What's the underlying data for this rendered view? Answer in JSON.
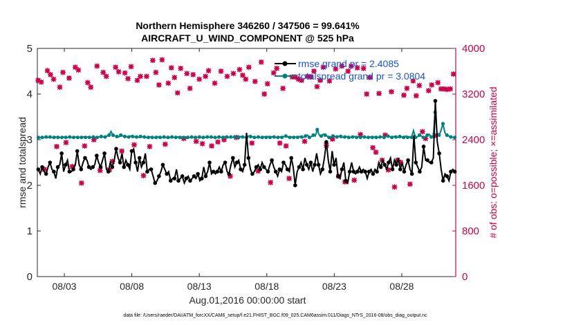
{
  "chart_data": {
    "type": "line",
    "title_line1": "Northern Hemisphere 346260 / 347506 = 99.641%",
    "title_line2": "AIRCRAFT_U_WIND_COMPONENT @ 525 hPa",
    "ylabel_left": "rmse and totalspread",
    "ylabel_right": "# of obs: o=possible; ×=assimilated",
    "xlabel": "Aug.01,2016 00:00:00 start",
    "footer": "data file: /Users/raeder/DAI/ATM_forcXX/CAM6_setup/f.e21.FHIST_BGC.f09_025.CAM6assim.011/Diags_NTrS_2016-08/obs_diag_output.nc",
    "xlim": [
      1,
      32
    ],
    "ylim_left": [
      0,
      5
    ],
    "ylim_right": [
      0,
      4000
    ],
    "x_ticks": [
      3,
      8,
      13,
      18,
      23,
      28
    ],
    "x_tick_labels": [
      "08/03",
      "08/08",
      "08/13",
      "08/18",
      "08/23",
      "08/28"
    ],
    "y_left_ticks": [
      "0",
      "1",
      "2",
      "3",
      "4",
      "5"
    ],
    "y_right_ticks": [
      "0",
      "800",
      "1600",
      "2400",
      "3200",
      "4000"
    ],
    "legend": {
      "placement": "top-right",
      "rmse_label": "rmse grand pr = 2.4085",
      "spread_label": "totalspread grand pr = 3.0804"
    },
    "series": [
      {
        "name": "rmse",
        "color": "#000000",
        "values": [
          2.35,
          2.25,
          2.4,
          2.3,
          2.25,
          2.4,
          2.5,
          2.35,
          2.3,
          2.15,
          2.4,
          2.45,
          2.7,
          2.3,
          2.45,
          2.55,
          2.3,
          2.3,
          2.35,
          2.45,
          2.75,
          2.45,
          2.35,
          2.5,
          2.6,
          2.55,
          2.4,
          2.35,
          2.4,
          2.45,
          2.65,
          2.5,
          2.4,
          2.55,
          2.7,
          2.35,
          2.3,
          2.5,
          2.4,
          2.55,
          2.8,
          2.6,
          2.5,
          2.7,
          2.4,
          2.55,
          2.45,
          2.35,
          2.75,
          2.8,
          2.5,
          2.3,
          2.6,
          2.4,
          2.5,
          2.7,
          2.3,
          2.35,
          2.35,
          2.2,
          2.05,
          2.1,
          2.2,
          2.3,
          2.45,
          2.35,
          2.25,
          2.3,
          2.1,
          2.15,
          2.15,
          2.35,
          2.1,
          2.15,
          2.2,
          2.05,
          2.15,
          2.2,
          2.1,
          2.15,
          2.2,
          2.15,
          2.25,
          2.1,
          2.15,
          2.4,
          2.2,
          2.3,
          2.5,
          2.25,
          2.3,
          2.25,
          2.3,
          2.4,
          2.3,
          2.45,
          2.5,
          2.3,
          2.25,
          2.45,
          2.6,
          2.4,
          2.5,
          2.55,
          2.35,
          2.3,
          2.45,
          3.15,
          2.6,
          2.35,
          2.25,
          2.3,
          2.4,
          2.45,
          2.35,
          2.5,
          2.4,
          2.35,
          2.3,
          2.45,
          2.55,
          2.4,
          2.3,
          2.2,
          2.35,
          2.3,
          2.5,
          2.45,
          2.35,
          2.3,
          2.6,
          2.4,
          2.0,
          2.3,
          2.4,
          2.5,
          2.35,
          2.6,
          2.45,
          2.35,
          2.5,
          2.3,
          2.45,
          2.7,
          2.45,
          2.25,
          2.35,
          2.6,
          2.95,
          2.55,
          2.3,
          2.75,
          2.45,
          2.6,
          2.2,
          2.15,
          2.35,
          2.5,
          2.1,
          2.05,
          2.3,
          2.5,
          2.3,
          2.25,
          2.3,
          2.4,
          2.3,
          2.35,
          2.3,
          2.15,
          2.3,
          2.35,
          2.25,
          2.35,
          2.3,
          2.5,
          2.4,
          2.55,
          2.45,
          2.35,
          2.5,
          2.6,
          2.35,
          2.55,
          2.45,
          2.6,
          2.35,
          2.5,
          2.3,
          2.45,
          2.55,
          2.35,
          2.25,
          3.1,
          2.5,
          2.4,
          2.3,
          2.4,
          2.85,
          2.55,
          2.55,
          2.5,
          2.5,
          2.6,
          3.85,
          2.95,
          2.7,
          2.35,
          2.1,
          2.25,
          2.2,
          2.1,
          2.3,
          2.35,
          2.3
        ]
      },
      {
        "name": "totalspread",
        "color": "#008080",
        "values": [
          3.05,
          3.05,
          3.05,
          3.05,
          3.06,
          3.05,
          3.06,
          3.05,
          3.05,
          3.06,
          3.05,
          3.05,
          3.05,
          3.06,
          3.05,
          3.05,
          3.06,
          3.05,
          3.05,
          3.06,
          3.05,
          3.05,
          3.05,
          3.06,
          3.05,
          3.06,
          3.05,
          3.05,
          3.06,
          3.05,
          3.05,
          3.06,
          3.07,
          3.06,
          3.06,
          3.08,
          3.1,
          3.18,
          3.1,
          3.08,
          3.07,
          3.06,
          3.1,
          3.08,
          3.07,
          3.06,
          3.06,
          3.08,
          3.07,
          3.06,
          3.06,
          3.05,
          3.07,
          3.06,
          3.06,
          3.05,
          3.05,
          3.06,
          3.05,
          3.05,
          3.05,
          3.06,
          3.05,
          3.05,
          3.06,
          3.05,
          3.05,
          3.05,
          3.06,
          3.05,
          3.05,
          3.06,
          3.05,
          3.05,
          3.05,
          3.06,
          3.05,
          3.05,
          3.06,
          3.05,
          3.05,
          3.05,
          3.06,
          3.05,
          3.05,
          3.05,
          3.06,
          3.05,
          3.06,
          3.05,
          3.05,
          3.05,
          3.06,
          3.05,
          3.05,
          3.07,
          3.06,
          3.05,
          3.06,
          3.05,
          3.06,
          3.05,
          3.05,
          3.07,
          3.06,
          3.05,
          3.05,
          3.08,
          3.07,
          3.06,
          3.05,
          3.05,
          3.06,
          3.05,
          3.05,
          3.06,
          3.05,
          3.07,
          3.05,
          3.06,
          3.06,
          3.05,
          3.05,
          3.06,
          3.05,
          3.07,
          3.08,
          3.06,
          3.05,
          3.06,
          3.05,
          3.06,
          3.05,
          3.07,
          3.06,
          3.05,
          3.08,
          3.1,
          3.05,
          3.07,
          3.1,
          3.08,
          3.22,
          3.1,
          3.08,
          3.12,
          3.1,
          3.08,
          3.05,
          3.06,
          3.08,
          3.07,
          3.06,
          3.08,
          3.07,
          3.05,
          3.06,
          3.07,
          3.05,
          3.05,
          3.06,
          3.07,
          3.05,
          3.06,
          3.05,
          3.07,
          3.06,
          3.05,
          3.05,
          3.06,
          3.05,
          3.06,
          3.05,
          3.05,
          3.06,
          3.06,
          3.05,
          3.07,
          3.08,
          3.06,
          3.05,
          3.07,
          3.06,
          3.05,
          3.07,
          3.06,
          3.05,
          3.08,
          3.05,
          3.06,
          3.05,
          3.2,
          3.05,
          3.06,
          3.1,
          3.08,
          3.05,
          3.06,
          3.1,
          3.12,
          3.06,
          3.05,
          3.6,
          3.15,
          3.1,
          3.2,
          3.35,
          3.15,
          3.1,
          3.08,
          3.06,
          3.05,
          3.05
        ]
      },
      {
        "name": "possible",
        "color": "#c8004b",
        "values": [
          3440,
          3430,
          3410,
          2260,
          1880,
          3580,
          3610,
          2260,
          3540,
          3480,
          3460,
          3420,
          2280,
          1760,
          3320,
          2400,
          3580,
          3660,
          2350,
          3380,
          3480,
          2270,
          1930,
          3590,
          3670,
          2310,
          3620,
          2900,
          1640,
          3530,
          2290,
          3570,
          3400,
          2320,
          3320,
          2260,
          2400,
          3640,
          3690,
          2270,
          1860,
          3620,
          3580,
          2340,
          3510,
          2450,
          1870,
          3580,
          2020,
          3760,
          3670,
          2310,
          3590,
          3640,
          2200,
          3810,
          3570,
          3580,
          3470,
          2370,
          3680,
          3390,
          2310,
          2660,
          3440,
          3640,
          3510,
          2430,
          1770,
          3550,
          3510,
          3440,
          2280,
          3860,
          3790,
          2200,
          3580,
          3430,
          3360,
          2280,
          3800,
          3850,
          2320,
          3470,
          3390,
          2350,
          3660,
          3600,
          3490,
          2340,
          3220,
          1770,
          3650,
          3730,
          2420,
          3620,
          3560,
          2320,
          3300,
          1680,
          3540,
          3660,
          2370,
          3880,
          3460,
          3550,
          2330,
          3680,
          3510,
          2400,
          3610,
          3650,
          2290,
          3440,
          3390,
          3680,
          2360,
          1970,
          3600,
          3420,
          2400,
          3860,
          3510,
          2290,
          1760,
          3680,
          3560,
          3640,
          2440,
          3560,
          3630,
          2300,
          3530,
          3580,
          3460,
          1850,
          3670,
          3480,
          2340,
          3600,
          3420,
          2440,
          1850,
          3690,
          3760,
          3360,
          3200,
          3480,
          3380,
          2260,
          1650,
          3640,
          3570,
          2410,
          3650,
          3530,
          2340,
          3780,
          3300,
          3380,
          2290,
          3440,
          1720,
          3590,
          3500,
          2490,
          3500,
          3580,
          3460,
          1840,
          3440,
          3680,
          2370,
          3790,
          3510,
          2310,
          3500,
          3510,
          3600,
          2380,
          3330,
          3540,
          3440,
          2340,
          3670,
          3500,
          2300,
          3590,
          3430,
          3700,
          2410,
          3360,
          3640,
          3400,
          1760,
          3480,
          3690,
          2260,
          1660,
          3460,
          3600,
          2350,
          3690,
          2240,
          1690,
          3470,
          3660,
          2330,
          2490,
          3600,
          3650,
          3280,
          3200,
          2090,
          3490,
          3610,
          2260,
          3210,
          2180,
          1820,
          3210,
          2300,
          2040,
          3230,
          2480,
          3240,
          1870,
          3280,
          3240,
          2410,
          1570,
          3420,
          2040,
          3560,
          2000,
          3190,
          3180,
          2500,
          3300,
          1700,
          1620,
          3270,
          3430,
          3560,
          3170,
          3250,
          3350,
          2370,
          2540,
          2160,
          2420,
          3180,
          3260,
          3270,
          3360,
          2850,
          2470,
          3240,
          3400,
          3220,
          3290,
          2540,
          3290,
          3370,
          3280,
          3390,
          3290,
          3070,
          3550,
          0
        ]
      },
      {
        "name": "assimilated",
        "color": "#c8004b",
        "values": [
          3440,
          3430,
          3410,
          2260,
          1880,
          3580,
          3610,
          2260,
          3540,
          3480,
          3460,
          3420,
          2280,
          1760,
          3320,
          2400,
          3580,
          3660,
          2350,
          3380,
          3480,
          2270,
          1930,
          3590,
          3670,
          2310,
          3620,
          2900,
          1640,
          3530,
          2290,
          3570,
          3400,
          2320,
          3320,
          2260,
          2400,
          3640,
          3690,
          2270,
          1860,
          3620,
          3580,
          2340,
          3510,
          2450,
          1870,
          3580,
          2020,
          3760,
          3670,
          2310,
          3590,
          3640,
          2200,
          3810,
          3570,
          3580,
          3470,
          2370,
          3680,
          3390,
          2310,
          2660,
          3440,
          3640,
          3510,
          2430,
          1770,
          3550,
          3510,
          3440,
          2280,
          3860,
          3790,
          2200,
          3580,
          3430,
          3360,
          2280,
          3800,
          3850,
          2320,
          3470,
          3390,
          2350,
          3660,
          3600,
          3490,
          2340,
          3220,
          1770,
          3650,
          3730,
          2420,
          3620,
          3560,
          2320,
          3300,
          1680,
          3540,
          3660,
          2370,
          3880,
          3460,
          3550,
          2330,
          3680,
          3510,
          2400,
          3610,
          3650,
          2290,
          3440,
          3390,
          3680,
          2360,
          1970,
          3600,
          3420,
          2400,
          3860,
          3510,
          2290,
          1760,
          3680,
          3560,
          3640,
          2440,
          3560,
          3630,
          2300,
          3530,
          3580,
          3460,
          1850,
          3670,
          3480,
          2340,
          3600,
          3420,
          2440,
          1850,
          3690,
          3760,
          3360,
          3200,
          3480,
          3380,
          2260,
          1650,
          3640,
          3570,
          2410,
          3650,
          3530,
          2340,
          3780,
          3300,
          3380,
          2290,
          3440,
          1720,
          3590,
          3500,
          2490,
          3500,
          3580,
          3460,
          1840,
          3440,
          3680,
          2370,
          3790,
          3510,
          2310,
          3500,
          3510,
          3600,
          2380,
          3330,
          3540,
          3440,
          2340,
          3670,
          3500,
          2300,
          3590,
          3430,
          3700,
          2410,
          3360,
          3640,
          3400,
          1760,
          3480,
          3690,
          2260,
          1660,
          3460,
          3600,
          2350,
          3690,
          2240,
          1690,
          3470,
          3660,
          2330,
          2490,
          3600,
          3650,
          3280,
          3200,
          2090,
          3490,
          3610,
          2260,
          3210,
          2180,
          1820,
          3210,
          2300,
          2040,
          3230,
          2480,
          3240,
          1870,
          3280,
          3240,
          2410,
          1570,
          3420,
          2040,
          3560,
          2000,
          3190,
          3180,
          2500,
          3300,
          1700,
          1620,
          3270,
          3430,
          3560,
          3170,
          3250,
          3350,
          2370,
          2540,
          2160,
          2420,
          3180,
          3260,
          3270,
          3360,
          2850,
          2470,
          3240,
          3400,
          3220,
          3290,
          2540,
          3290,
          3370,
          3280,
          3390,
          3290,
          3070,
          3550,
          0
        ]
      }
    ],
    "x_values_note": ""
  }
}
